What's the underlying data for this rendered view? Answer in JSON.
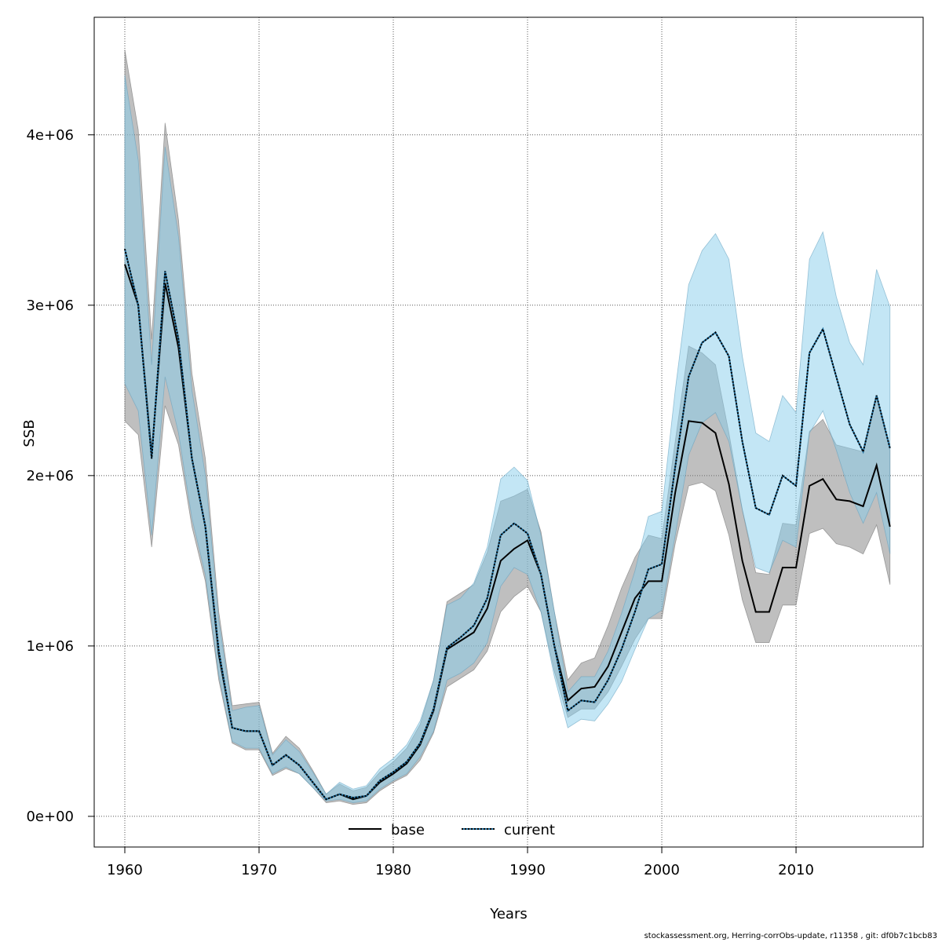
{
  "chart_data": {
    "type": "line",
    "title": "",
    "xlabel": "Years",
    "ylabel": "SSB",
    "xlim": [
      1957.72,
      2019.47
    ],
    "ylim": [
      -180000,
      4690000
    ],
    "grid": true,
    "x_ticks": [
      1960,
      1970,
      1980,
      1990,
      2000,
      2010
    ],
    "x_tick_labels": [
      "1960",
      "1970",
      "1980",
      "1990",
      "2000",
      "2010"
    ],
    "y_ticks": [
      0,
      1000000,
      2000000,
      3000000,
      4000000
    ],
    "y_tick_labels": [
      "0e+00",
      "1e+06",
      "2e+06",
      "3e+06",
      "4e+06"
    ],
    "legend": {
      "placement": "bottom-center",
      "entries": [
        "base",
        "current"
      ]
    },
    "colors": {
      "base_line": "#000000",
      "current_line": "#1f6f9f",
      "base_band": "rgba(128,128,128,0.5)",
      "current_band": "rgba(135,206,235,0.5)"
    },
    "x": [
      1960,
      1961,
      1962,
      1963,
      1964,
      1965,
      1966,
      1967,
      1968,
      1969,
      1970,
      1971,
      1972,
      1973,
      1974,
      1975,
      1976,
      1977,
      1978,
      1979,
      1980,
      1981,
      1982,
      1983,
      1984,
      1985,
      1986,
      1987,
      1988,
      1989,
      1990,
      1991,
      1992,
      1993,
      1994,
      1995,
      1996,
      1997,
      1998,
      1999,
      2000,
      2001,
      2002,
      2003,
      2004,
      2005,
      2006,
      2007,
      2008,
      2009,
      2010,
      2011,
      2012,
      2013,
      2014,
      2015,
      2016,
      2017
    ],
    "series": [
      {
        "name": "base",
        "values": [
          3.24,
          3.0,
          2.12,
          3.13,
          2.75,
          2.1,
          1.7,
          0.95,
          0.52,
          0.5,
          0.5,
          0.3,
          0.36,
          0.3,
          0.2,
          0.1,
          0.13,
          0.1,
          0.12,
          0.2,
          0.25,
          0.31,
          0.42,
          0.62,
          0.98,
          1.03,
          1.08,
          1.22,
          1.5,
          1.57,
          1.62,
          1.42,
          1.0,
          0.68,
          0.75,
          0.76,
          0.88,
          1.08,
          1.28,
          1.38,
          1.38,
          1.9,
          2.32,
          2.31,
          2.25,
          1.95,
          1.5,
          1.2,
          1.2,
          1.46,
          1.46,
          1.94,
          1.98,
          1.86,
          1.85,
          1.82,
          2.06,
          1.7
        ],
        "lower": [
          2.32,
          2.24,
          1.58,
          2.41,
          2.18,
          1.7,
          1.38,
          0.8,
          0.43,
          0.39,
          0.39,
          0.24,
          0.28,
          0.25,
          0.17,
          0.08,
          0.09,
          0.07,
          0.08,
          0.15,
          0.2,
          0.24,
          0.33,
          0.49,
          0.76,
          0.81,
          0.86,
          0.97,
          1.2,
          1.29,
          1.35,
          1.2,
          0.85,
          0.58,
          0.63,
          0.63,
          0.73,
          0.88,
          1.04,
          1.16,
          1.16,
          1.6,
          1.94,
          1.96,
          1.91,
          1.65,
          1.27,
          1.02,
          1.02,
          1.24,
          1.24,
          1.66,
          1.69,
          1.6,
          1.58,
          1.54,
          1.71,
          1.36
        ],
        "upper": [
          4.5,
          4.03,
          2.8,
          4.07,
          3.5,
          2.6,
          2.1,
          1.2,
          0.65,
          0.66,
          0.67,
          0.37,
          0.47,
          0.4,
          0.27,
          0.13,
          0.19,
          0.15,
          0.17,
          0.26,
          0.32,
          0.4,
          0.54,
          0.8,
          1.26,
          1.31,
          1.36,
          1.55,
          1.85,
          1.88,
          1.92,
          1.67,
          1.2,
          0.8,
          0.9,
          0.93,
          1.12,
          1.34,
          1.52,
          1.65,
          1.63,
          2.2,
          2.76,
          2.72,
          2.65,
          2.25,
          1.8,
          1.43,
          1.42,
          1.72,
          1.71,
          2.26,
          2.33,
          2.18,
          2.16,
          2.14,
          2.47,
          2.15
        ]
      },
      {
        "name": "current",
        "values": [
          3.33,
          3.0,
          2.1,
          3.2,
          2.8,
          2.1,
          1.7,
          0.97,
          0.52,
          0.5,
          0.5,
          0.3,
          0.36,
          0.3,
          0.2,
          0.1,
          0.13,
          0.11,
          0.12,
          0.21,
          0.26,
          0.32,
          0.43,
          0.63,
          0.99,
          1.05,
          1.12,
          1.28,
          1.65,
          1.72,
          1.66,
          1.42,
          1.0,
          0.62,
          0.68,
          0.67,
          0.8,
          0.98,
          1.2,
          1.45,
          1.48,
          2.05,
          2.58,
          2.78,
          2.84,
          2.7,
          2.2,
          1.81,
          1.77,
          2.0,
          1.94,
          2.72,
          2.86,
          2.58,
          2.3,
          2.14,
          2.47,
          2.16
        ],
        "lower": [
          2.54,
          2.38,
          1.65,
          2.58,
          2.25,
          1.75,
          1.42,
          0.83,
          0.44,
          0.4,
          0.4,
          0.25,
          0.29,
          0.25,
          0.17,
          0.09,
          0.1,
          0.08,
          0.09,
          0.16,
          0.21,
          0.25,
          0.35,
          0.5,
          0.8,
          0.84,
          0.9,
          1.02,
          1.35,
          1.46,
          1.42,
          1.2,
          0.82,
          0.52,
          0.57,
          0.56,
          0.66,
          0.79,
          0.98,
          1.16,
          1.21,
          1.65,
          2.12,
          2.31,
          2.37,
          2.2,
          1.8,
          1.46,
          1.43,
          1.62,
          1.58,
          2.25,
          2.38,
          2.15,
          1.9,
          1.72,
          1.9,
          1.54
        ],
        "upper": [
          4.35,
          3.85,
          2.65,
          3.93,
          3.4,
          2.5,
          2.0,
          1.15,
          0.62,
          0.64,
          0.65,
          0.36,
          0.45,
          0.38,
          0.26,
          0.13,
          0.2,
          0.16,
          0.18,
          0.28,
          0.34,
          0.42,
          0.56,
          0.8,
          1.24,
          1.28,
          1.37,
          1.58,
          1.98,
          2.05,
          1.97,
          1.65,
          1.2,
          0.73,
          0.82,
          0.82,
          0.97,
          1.19,
          1.44,
          1.76,
          1.79,
          2.5,
          3.12,
          3.32,
          3.42,
          3.27,
          2.7,
          2.25,
          2.2,
          2.47,
          2.37,
          3.27,
          3.43,
          3.05,
          2.78,
          2.65,
          3.21,
          2.99
        ]
      }
    ],
    "value_units": "millions"
  },
  "footer": "stockassessment.org, Herring-corrObs-update, r11358 , git: df0b7c1bcb83"
}
